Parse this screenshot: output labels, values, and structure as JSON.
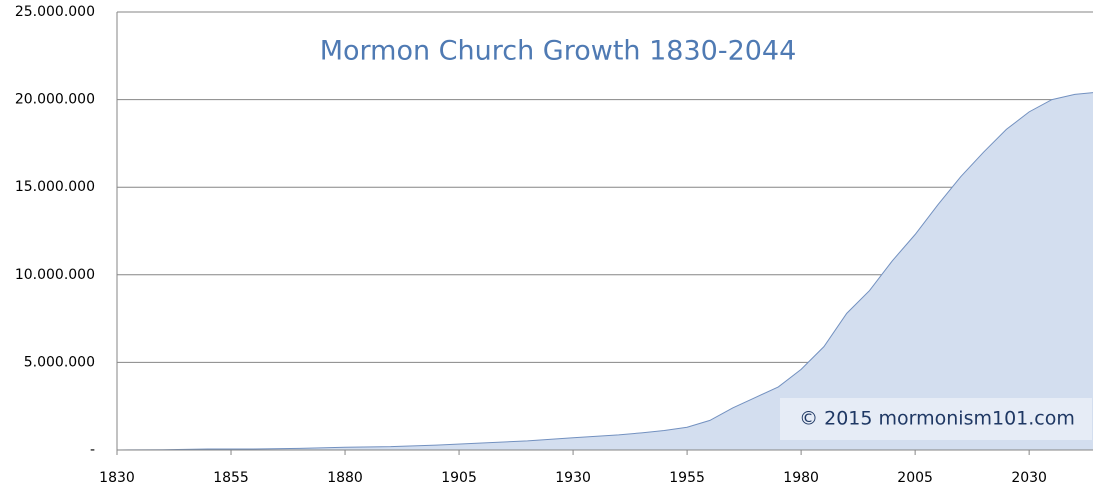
{
  "chart_data": {
    "type": "area",
    "title": "Mormon Church Growth 1830-2044",
    "annotation": "© 2015 mormonism101.com",
    "x": [
      1830,
      1840,
      1850,
      1860,
      1870,
      1880,
      1890,
      1900,
      1910,
      1920,
      1930,
      1940,
      1945,
      1950,
      1955,
      1960,
      1965,
      1970,
      1975,
      1980,
      1985,
      1990,
      1995,
      2000,
      2005,
      2010,
      2015,
      2020,
      2025,
      2030,
      2035,
      2040,
      2044
    ],
    "values": [
      0,
      17000,
      60000,
      60000,
      90000,
      160000,
      190000,
      280000,
      400000,
      520000,
      700000,
      860000,
      980000,
      1110000,
      1300000,
      1690000,
      2400000,
      3000000,
      3600000,
      4600000,
      5900000,
      7800000,
      9100000,
      10800000,
      12300000,
      14000000,
      15600000,
      17000000,
      18300000,
      19300000,
      20000000,
      20300000,
      20400000
    ],
    "color": "#d3deef",
    "line_color": "#7391c0",
    "xlim": [
      1830,
      2044
    ],
    "xticks": [
      1830,
      1855,
      1880,
      1905,
      1930,
      1955,
      1980,
      2005,
      2030
    ],
    "ylim": [
      0,
      25000000
    ],
    "yticks": [
      {
        "value": 0,
        "label": "-"
      },
      {
        "value": 5000000,
        "label": "5.000.000"
      },
      {
        "value": 10000000,
        "label": "10.000.000"
      },
      {
        "value": 15000000,
        "label": "15.000.000"
      },
      {
        "value": 20000000,
        "label": "20.000.000"
      },
      {
        "value": 25000000,
        "label": "25.000.000"
      }
    ],
    "grid": true
  }
}
